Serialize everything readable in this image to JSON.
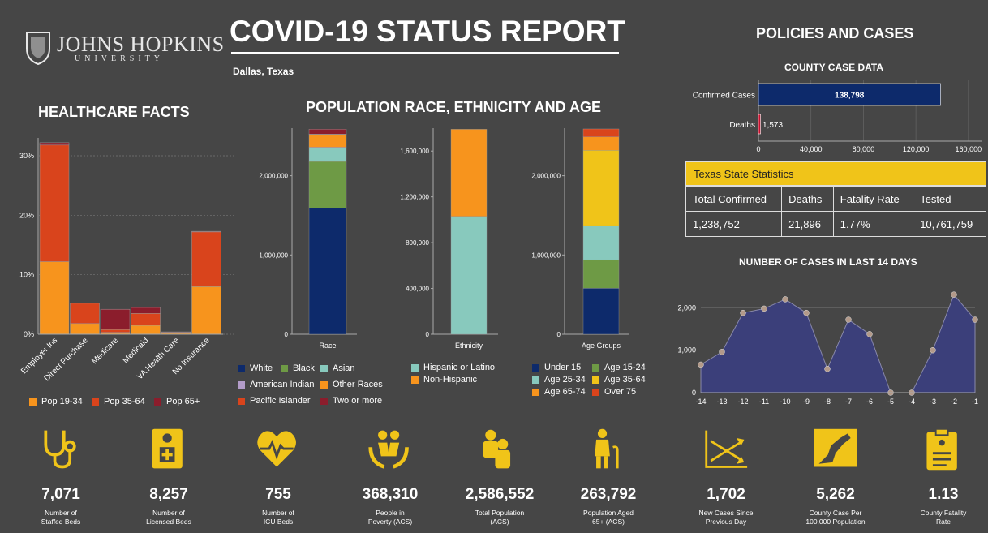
{
  "header": {
    "logo_line1": "JOHNS HOPKINS",
    "logo_line2": "UNIVERSITY",
    "title": "COVID-19 STATUS REPORT",
    "location": "Dallas, Texas",
    "policies_title": "POLICIES AND CASES"
  },
  "healthcare": {
    "title": "HEALTHCARE FACTS",
    "y_ticks": [
      "0%",
      "10%",
      "20%",
      "30%"
    ],
    "legend": [
      {
        "label": "Pop 19-34",
        "color": "#f7941d"
      },
      {
        "label": "Pop 35-64",
        "color": "#d9441c"
      },
      {
        "label": "Pop 65+",
        "color": "#8b1d2c"
      }
    ]
  },
  "population": {
    "title": "POPULATION RACE, ETHNICITY AND AGE",
    "race_legend": [
      {
        "label": "White",
        "color": "#0d2a6b"
      },
      {
        "label": "Black",
        "color": "#6e9a45"
      },
      {
        "label": "Asian",
        "color": "#88c9bd"
      },
      {
        "label": "American Indian",
        "color": "#b39cc9"
      },
      {
        "label": "Other Races",
        "color": "#f7941d"
      },
      {
        "label": "Pacific Islander",
        "color": "#d9441c"
      },
      {
        "label": "Two or more",
        "color": "#8b1d2c"
      }
    ],
    "ethnicity_legend": [
      {
        "label": "Hispanic or Latino",
        "color": "#88c9bd"
      },
      {
        "label": "Non-Hispanic",
        "color": "#f7941d"
      }
    ],
    "age_legend": [
      {
        "label": "Under 15",
        "color": "#0d2a6b"
      },
      {
        "label": "Age 15-24",
        "color": "#6e9a45"
      },
      {
        "label": "Age 25-34",
        "color": "#88c9bd"
      },
      {
        "label": "Age 35-64",
        "color": "#f0c419"
      },
      {
        "label": "Age 65-74",
        "color": "#f7941d"
      },
      {
        "label": "Over 75",
        "color": "#d9441c"
      }
    ]
  },
  "county": {
    "title": "COUNTY CASE DATA",
    "confirmed_label": "Confirmed Cases",
    "confirmed_value": "138,798",
    "deaths_label": "Deaths",
    "deaths_value": "1,573"
  },
  "texas": {
    "title": "Texas State Statistics",
    "headers": [
      "Total Confirmed",
      "Deaths",
      "Fatality Rate",
      "Tested"
    ],
    "values": [
      "1,238,752",
      "21,896",
      "1.77%",
      "10,761,759"
    ]
  },
  "cases14": {
    "title": "NUMBER OF CASES IN LAST 14 DAYS"
  },
  "stats": [
    {
      "value": "7,071",
      "label": "Number of\nStaffed Beds",
      "icon": "stethoscope-icon"
    },
    {
      "value": "8,257",
      "label": "Number of\nLicensed Beds",
      "icon": "medical-card-icon"
    },
    {
      "value": "755",
      "label": "Number of\nICU Beds",
      "icon": "heartbeat-icon"
    },
    {
      "value": "368,310",
      "label": "People in\nPoverty (ACS)",
      "icon": "hands-people-icon"
    },
    {
      "value": "2,586,552",
      "label": "Total Population\n(ACS)",
      "icon": "population-icon"
    },
    {
      "value": "263,792",
      "label": "Population Aged\n65+ (ACS)",
      "icon": "elderly-icon"
    },
    {
      "value": "1,702",
      "label": "New Cases Since\nPrevious Day",
      "icon": "trend-arrows-icon"
    },
    {
      "value": "5,262",
      "label": "County Case Per\n100,000 Population",
      "icon": "county-map-icon"
    },
    {
      "value": "1.13",
      "label": "County Fatality\nRate",
      "icon": "clipboard-icon"
    }
  ],
  "chart_data": [
    {
      "type": "bar",
      "title": "HEALTHCARE FACTS",
      "stacked": true,
      "categories": [
        "Employer Ins",
        "Direct Purchase",
        "Medicare",
        "Medicaid",
        "VA Health Care",
        "No Insurance"
      ],
      "series": [
        {
          "name": "Pop 19-34",
          "values": [
            12.2,
            1.8,
            0.3,
            1.5,
            0.2,
            8.0
          ]
        },
        {
          "name": "Pop 35-64",
          "values": [
            19.6,
            3.4,
            0.5,
            2.0,
            0.1,
            9.2
          ]
        },
        {
          "name": "Pop 65+",
          "values": [
            0.4,
            0.0,
            3.4,
            1.0,
            0.1,
            0.1
          ]
        }
      ],
      "ylim": [
        0,
        33
      ],
      "y_ticks": [
        "0%",
        "10%",
        "20%",
        "30%"
      ],
      "grid": true
    },
    {
      "type": "bar",
      "stacked": true,
      "categories": [
        "Race"
      ],
      "series": [
        {
          "name": "White",
          "values": [
            1590000
          ]
        },
        {
          "name": "Black",
          "values": [
            590000
          ]
        },
        {
          "name": "Asian",
          "values": [
            170000
          ]
        },
        {
          "name": "American Indian",
          "values": [
            10000
          ]
        },
        {
          "name": "Other Races",
          "values": [
            160000
          ]
        },
        {
          "name": "Pacific Islander",
          "values": [
            5000
          ]
        },
        {
          "name": "Two or more",
          "values": [
            62000
          ]
        }
      ],
      "ylim": [
        0,
        2600000
      ],
      "y_ticks": [
        "0",
        "1,000,000",
        "2,000,000"
      ]
    },
    {
      "type": "bar",
      "stacked": true,
      "categories": [
        "Ethnicity"
      ],
      "series": [
        {
          "name": "Hispanic or Latino",
          "values": [
            1030000
          ]
        },
        {
          "name": "Non-Hispanic",
          "values": [
            760000
          ]
        }
      ],
      "ylim": [
        0,
        1800000
      ],
      "y_ticks": [
        "0",
        "400,000",
        "800,000",
        "1,200,000",
        "1,600,000"
      ]
    },
    {
      "type": "bar",
      "stacked": true,
      "categories": [
        "Age Groups"
      ],
      "series": [
        {
          "name": "Under 15",
          "values": [
            580000
          ]
        },
        {
          "name": "Age 15-24",
          "values": [
            360000
          ]
        },
        {
          "name": "Age 25-34",
          "values": [
            430000
          ]
        },
        {
          "name": "Age 35-64",
          "values": [
            950000
          ]
        },
        {
          "name": "Age 65-74",
          "values": [
            170000
          ]
        },
        {
          "name": "Over 75",
          "values": [
            100000
          ]
        }
      ],
      "ylim": [
        0,
        2600000
      ],
      "y_ticks": [
        "0",
        "1,000,000",
        "2,000,000"
      ]
    },
    {
      "type": "bar",
      "orientation": "horizontal",
      "title": "COUNTY CASE DATA",
      "categories": [
        "Confirmed Cases",
        "Deaths"
      ],
      "values": [
        138798,
        1573
      ],
      "xlim": [
        0,
        170000
      ],
      "x_ticks": [
        "0",
        "40,000",
        "80,000",
        "120,000",
        "160,000"
      ],
      "colors": [
        "#0d2a6b",
        "#c8102e"
      ]
    },
    {
      "type": "area",
      "title": "NUMBER OF CASES IN LAST 14 DAYS",
      "x": [
        -14,
        -13,
        -12,
        -11,
        -10,
        -9,
        -8,
        -7,
        -6,
        -5,
        -4,
        -3,
        -2,
        -1
      ],
      "y": [
        660,
        960,
        1880,
        1980,
        2200,
        1880,
        560,
        1720,
        1380,
        0,
        0,
        1000,
        2310,
        1720
      ],
      "ylim": [
        0,
        2600
      ],
      "y_ticks": [
        "0",
        "1,000",
        "2,000"
      ],
      "x_ticks": [
        "-14",
        "-13",
        "-12",
        "-11",
        "-10",
        "-9",
        "-8",
        "-7",
        "-6",
        "-5",
        "-4",
        "-3",
        "-2",
        "-1"
      ],
      "color": "#3b3f7a"
    }
  ]
}
